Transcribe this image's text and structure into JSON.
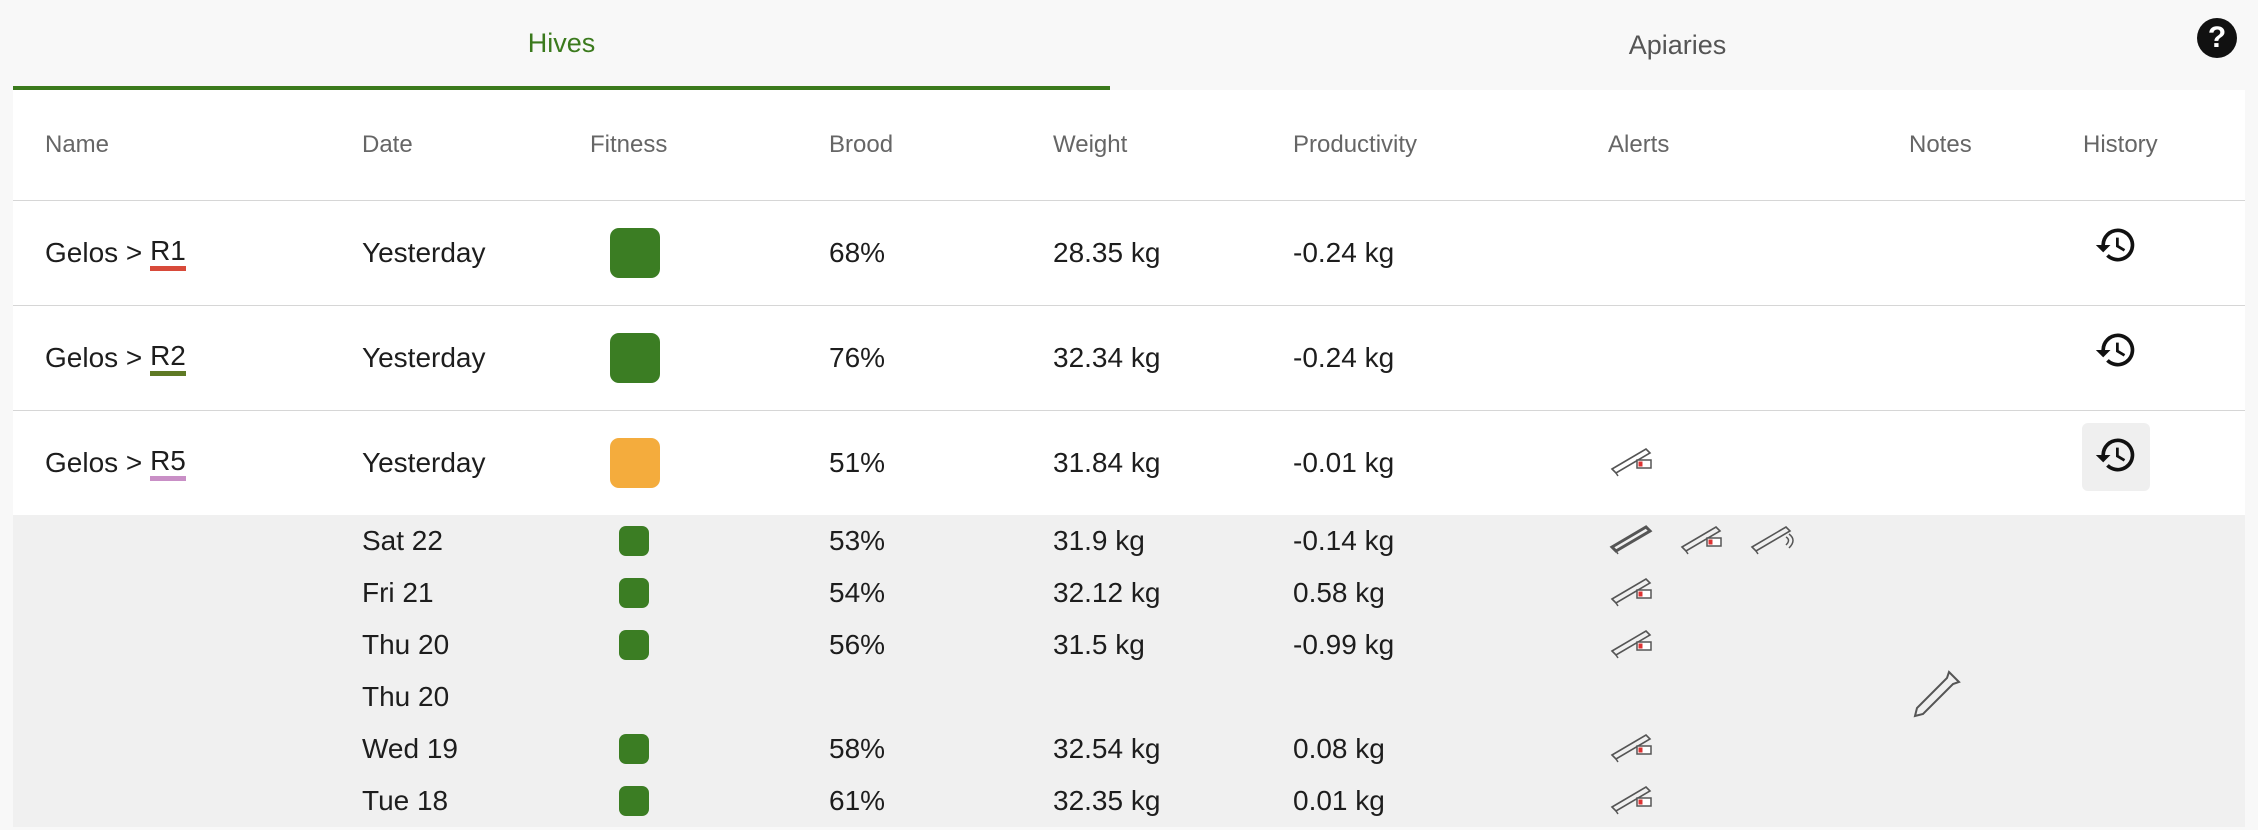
{
  "tabs": [
    {
      "label": "Hives",
      "active": true
    },
    {
      "label": "Apiaries",
      "active": false
    }
  ],
  "help_label": "?",
  "columns": {
    "name": "Name",
    "date": "Date",
    "fitness": "Fitness",
    "brood": "Brood",
    "weight": "Weight",
    "productivity": "Productivity",
    "alerts": "Alerts",
    "notes": "Notes",
    "history": "History"
  },
  "colors": {
    "accent": "#3b7a1d",
    "fitness_good": "#3b7d23",
    "fitness_warn": "#f4ac3d"
  },
  "hives": [
    {
      "prefix": "Gelos > ",
      "suffix": "R1",
      "underline": "#d84a3a",
      "date": "Yesterday",
      "fitness": "#3b7d23",
      "brood": "68%",
      "weight": "28.35 kg",
      "productivity": "-0.24 kg",
      "alerts": [],
      "history_icon": "history-icon"
    },
    {
      "prefix": "Gelos > ",
      "suffix": "R2",
      "underline": "#5f7a25",
      "date": "Yesterday",
      "fitness": "#3b7d23",
      "brood": "76%",
      "weight": "32.34 kg",
      "productivity": "-0.24 kg",
      "alerts": [],
      "history_icon": "history-icon"
    },
    {
      "prefix": "Gelos > ",
      "suffix": "R5",
      "underline": "#c98fc6",
      "date": "Yesterday",
      "fitness": "#f4ac3d",
      "brood": "51%",
      "weight": "31.84 kg",
      "productivity": "-0.01 kg",
      "alerts": [
        "low-battery-scale-icon"
      ],
      "history_icon": "history-icon",
      "expanded": true
    }
  ],
  "history_rows": [
    {
      "date": "Sat 22",
      "fitness": "#3b7d23",
      "brood": "53%",
      "weight": "31.9 kg",
      "productivity": "-0.14 kg",
      "alerts": [
        "scale-tilted-icon",
        "low-battery-scale-icon",
        "scale-signal-icon"
      ],
      "note": ""
    },
    {
      "date": "Fri 21",
      "fitness": "#3b7d23",
      "brood": "54%",
      "weight": "32.12 kg",
      "productivity": "0.58 kg",
      "alerts": [
        "low-battery-scale-icon"
      ],
      "note": ""
    },
    {
      "date": "Thu 20",
      "fitness": "#3b7d23",
      "brood": "56%",
      "weight": "31.5 kg",
      "productivity": "-0.99 kg",
      "alerts": [
        "low-battery-scale-icon"
      ],
      "note": ""
    },
    {
      "date": "Thu 20",
      "fitness": "",
      "brood": "",
      "weight": "",
      "productivity": "",
      "alerts": [],
      "note": "hive-tool-icon"
    },
    {
      "date": "Wed 19",
      "fitness": "#3b7d23",
      "brood": "58%",
      "weight": "32.54 kg",
      "productivity": "0.08 kg",
      "alerts": [
        "low-battery-scale-icon"
      ],
      "note": ""
    },
    {
      "date": "Tue 18",
      "fitness": "#3b7d23",
      "brood": "61%",
      "weight": "32.35 kg",
      "productivity": "0.01 kg",
      "alerts": [
        "low-battery-scale-icon"
      ],
      "note": ""
    }
  ]
}
